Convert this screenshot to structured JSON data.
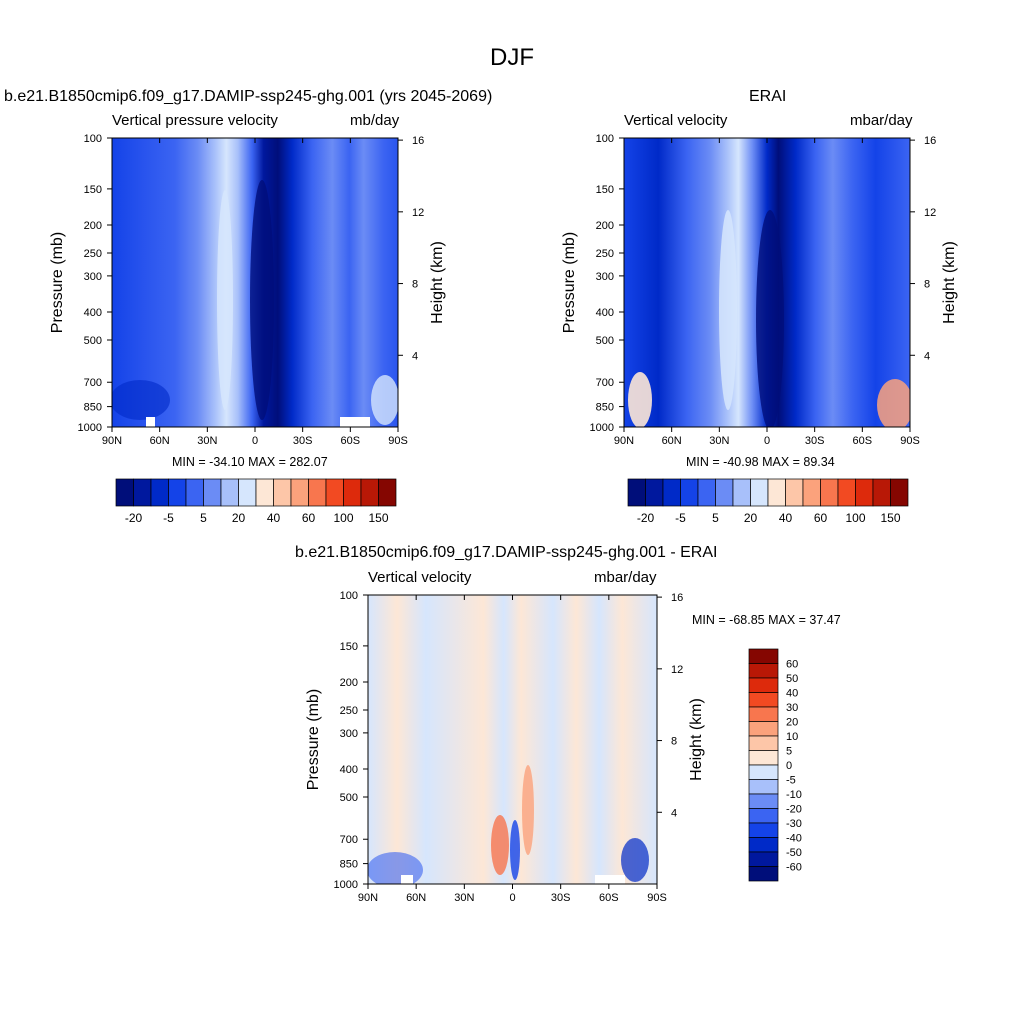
{
  "page_title": "DJF",
  "chart_data": [
    {
      "type": "heatmap",
      "title": "b.e21.B1850cmip6.f09_g17.DAMIP-ssp245-ghg.001 (yrs 2045-2069)",
      "left_subtitle": "Vertical pressure velocity",
      "right_subtitle": "mb/day",
      "xlabel": "",
      "ylabel": "Pressure (mb)",
      "y2label": "Height (km)",
      "x_ticks": [
        "90N",
        "60N",
        "30N",
        "0",
        "30S",
        "60S",
        "90S"
      ],
      "x_tick_values": [
        90,
        60,
        30,
        0,
        -30,
        -60,
        -90
      ],
      "y_ticks": [
        "100",
        "150",
        "200",
        "250",
        "300",
        "400",
        "500",
        "700",
        "850",
        "1000"
      ],
      "y_tick_values": [
        100,
        150,
        200,
        250,
        300,
        400,
        500,
        700,
        850,
        1000
      ],
      "y2_ticks": [
        "16",
        "12",
        "8",
        "4"
      ],
      "y2_tick_values": [
        16,
        12,
        8,
        4
      ],
      "xlim": [
        90,
        -90
      ],
      "ylim": [
        1000,
        100
      ],
      "y_scale": "log",
      "stats": "MIN = -34.10  MAX = 282.07",
      "colorbar": {
        "orientation": "horizontal",
        "labels": [
          "-20",
          "-5",
          "5",
          "20",
          "40",
          "60",
          "100",
          "150"
        ],
        "colors": [
          "#000e7a",
          "#00189e",
          "#002ac8",
          "#1443e8",
          "#3b64f2",
          "#6b8cf5",
          "#a8c0fa",
          "#d6e6fd",
          "#fde7d6",
          "#fdc6a8",
          "#fba27c",
          "#f8764e",
          "#f24a22",
          "#dd2a0c",
          "#b81806",
          "#850601"
        ]
      }
    },
    {
      "type": "heatmap",
      "title": "ERAI",
      "left_subtitle": "Vertical velocity",
      "right_subtitle": "mbar/day",
      "xlabel": "",
      "ylabel": "Pressure (mb)",
      "y2label": "Height (km)",
      "x_ticks": [
        "90N",
        "60N",
        "30N",
        "0",
        "30S",
        "60S",
        "90S"
      ],
      "x_tick_values": [
        90,
        60,
        30,
        0,
        -30,
        -60,
        -90
      ],
      "y_ticks": [
        "100",
        "150",
        "200",
        "250",
        "300",
        "400",
        "500",
        "700",
        "850",
        "1000"
      ],
      "y_tick_values": [
        100,
        150,
        200,
        250,
        300,
        400,
        500,
        700,
        850,
        1000
      ],
      "y2_ticks": [
        "16",
        "12",
        "8",
        "4"
      ],
      "y2_tick_values": [
        16,
        12,
        8,
        4
      ],
      "xlim": [
        90,
        -90
      ],
      "ylim": [
        1000,
        100
      ],
      "y_scale": "log",
      "stats": "MIN = -40.98  MAX =  89.34",
      "colorbar": {
        "orientation": "horizontal",
        "labels": [
          "-20",
          "-5",
          "5",
          "20",
          "40",
          "60",
          "100",
          "150"
        ],
        "colors": [
          "#000e7a",
          "#00189e",
          "#002ac8",
          "#1443e8",
          "#3b64f2",
          "#6b8cf5",
          "#a8c0fa",
          "#d6e6fd",
          "#fde7d6",
          "#fdc6a8",
          "#fba27c",
          "#f8764e",
          "#f24a22",
          "#dd2a0c",
          "#b81806",
          "#850601"
        ]
      }
    },
    {
      "type": "heatmap",
      "title": "b.e21.B1850cmip6.f09_g17.DAMIP-ssp245-ghg.001 - ERAI",
      "left_subtitle": "Vertical velocity",
      "right_subtitle": "mbar/day",
      "xlabel": "",
      "ylabel": "Pressure (mb)",
      "y2label": "Height (km)",
      "x_ticks": [
        "90N",
        "60N",
        "30N",
        "0",
        "30S",
        "60S",
        "90S"
      ],
      "x_tick_values": [
        90,
        60,
        30,
        0,
        -30,
        -60,
        -90
      ],
      "y_ticks": [
        "100",
        "150",
        "200",
        "250",
        "300",
        "400",
        "500",
        "700",
        "850",
        "1000"
      ],
      "y_tick_values": [
        100,
        150,
        200,
        250,
        300,
        400,
        500,
        700,
        850,
        1000
      ],
      "y2_ticks": [
        "16",
        "12",
        "8",
        "4"
      ],
      "y2_tick_values": [
        16,
        12,
        8,
        4
      ],
      "xlim": [
        90,
        -90
      ],
      "ylim": [
        1000,
        100
      ],
      "y_scale": "log",
      "stats": "MIN = -68.85  MAX =  37.47",
      "colorbar": {
        "orientation": "vertical",
        "labels": [
          "60",
          "50",
          "40",
          "30",
          "20",
          "10",
          "5",
          "0",
          "-5",
          "-10",
          "-20",
          "-30",
          "-40",
          "-50",
          "-60"
        ],
        "colors": [
          "#850601",
          "#b81806",
          "#dd2a0c",
          "#f24a22",
          "#f8764e",
          "#fba27c",
          "#fdc6a8",
          "#fde7d6",
          "#d6e6fd",
          "#a8c0fa",
          "#6b8cf5",
          "#3b64f2",
          "#1443e8",
          "#002ac8",
          "#00189e",
          "#000e7a"
        ]
      }
    }
  ]
}
